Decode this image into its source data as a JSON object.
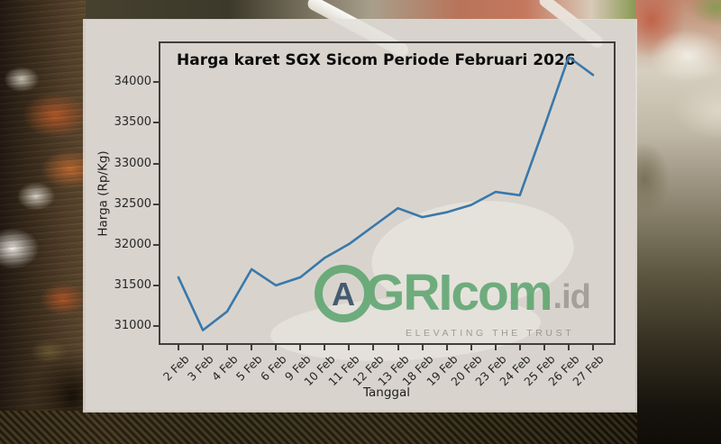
{
  "chart_data": {
    "type": "line",
    "title": "Harga karet SGX Sicom Periode Februari 2026",
    "xlabel": "Tanggal",
    "ylabel": "Harga (Rp/Kg)",
    "categories": [
      "2 Feb",
      "3 Feb",
      "4 Feb",
      "5 Feb",
      "6 Feb",
      "9 Feb",
      "10 Feb",
      "11 Feb",
      "12 Feb",
      "13 Feb",
      "18 Feb",
      "19 Feb",
      "20 Feb",
      "23 Feb",
      "24 Feb",
      "25 Feb",
      "26 Feb",
      "27 Feb"
    ],
    "values": [
      31600,
      30950,
      31180,
      31700,
      31500,
      31600,
      31840,
      32010,
      32230,
      32450,
      32340,
      32400,
      32490,
      32650,
      32610,
      33450,
      34310,
      34090
    ],
    "yticks": [
      31000,
      31500,
      32000,
      32500,
      33000,
      33500,
      34000
    ],
    "ylim": [
      30790,
      34480
    ],
    "grid": false,
    "legend_position": "none",
    "line_color": "#3a78aa",
    "frame_color": "#3f3e3c",
    "text_color": "#262626"
  },
  "watermark": {
    "brand_mark_letter": "A",
    "brand_text": "GRIcom",
    "brand_suffix": ".id",
    "tagline": "ELEVATING THE TRUST",
    "colors": {
      "brand_green": "#55a169",
      "suffix_gray": "#9a978f",
      "mark_letter_navy": "#24415c"
    }
  }
}
